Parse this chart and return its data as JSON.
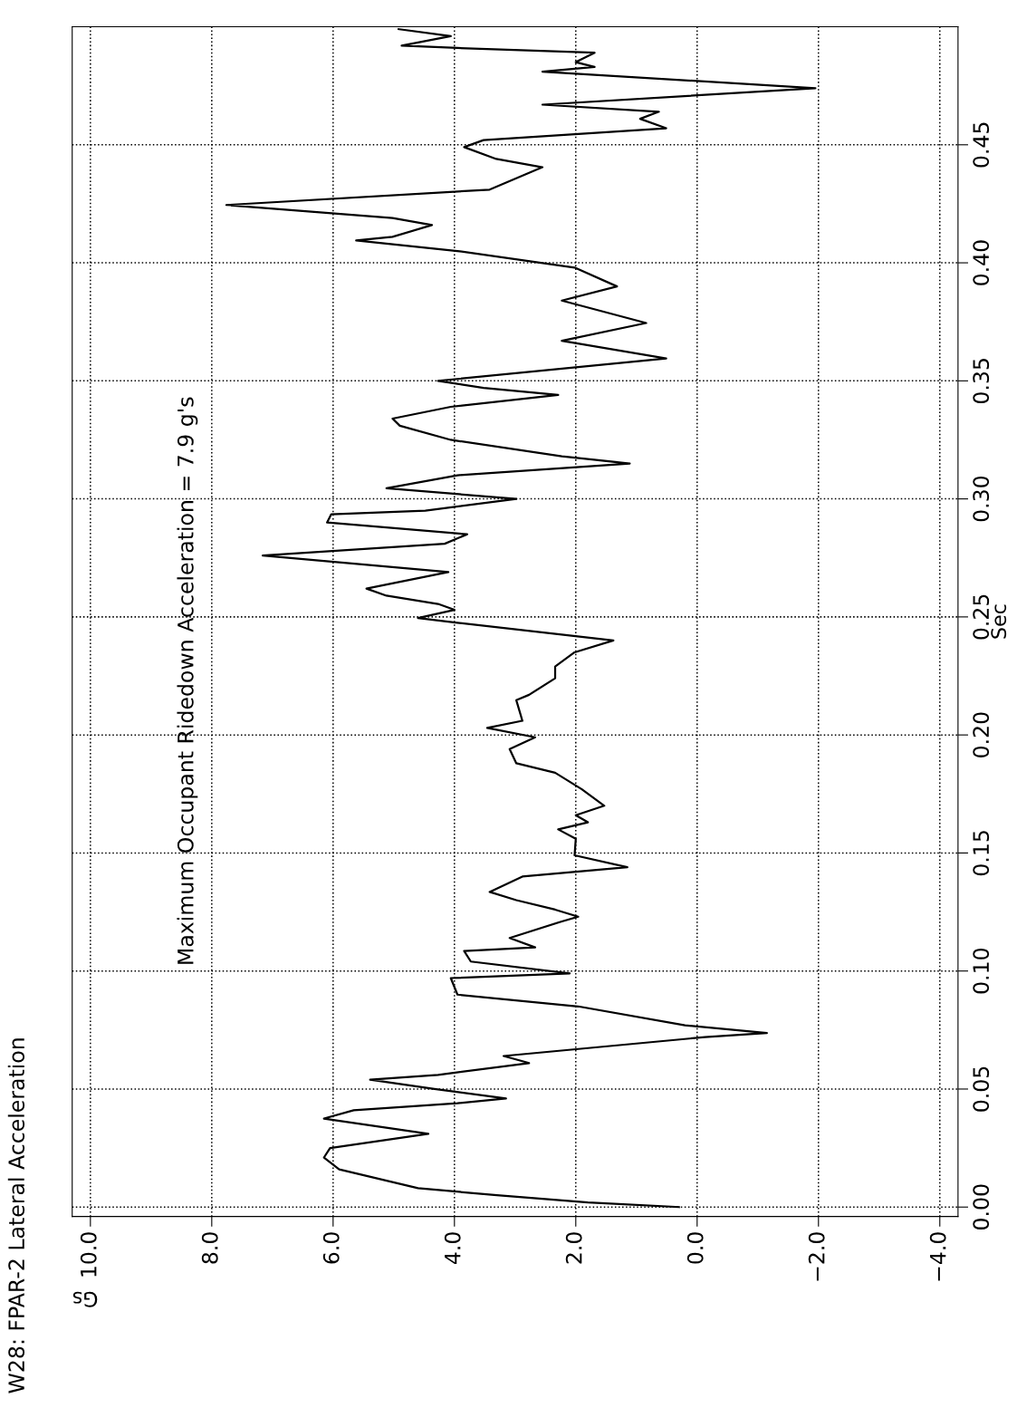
{
  "chart_data": {
    "type": "line",
    "title": "W28: FPAR-2 Lateral Acceleration",
    "xlabel": "Gs",
    "ylabel": "Sec",
    "annotations": [
      "Maximum Occupant Ridedown Acceleration = 7.9 g's"
    ],
    "xlim": [
      10.3,
      -4.3
    ],
    "ylim": [
      -0.004,
      0.5
    ],
    "xticks": [
      {
        "value": 10,
        "label": "10.0"
      },
      {
        "value": 8,
        "label": "8.0"
      },
      {
        "value": 6,
        "label": "6.0"
      },
      {
        "value": 4,
        "label": "4.0"
      },
      {
        "value": 2,
        "label": "2.0"
      },
      {
        "value": 0,
        "label": "0.0"
      },
      {
        "value": -2,
        "label": "−2.0"
      },
      {
        "value": -4,
        "label": "−4.0"
      }
    ],
    "yticks": [
      {
        "value": 0,
        "label": "0.00"
      },
      {
        "value": 0.05,
        "label": "0.05"
      },
      {
        "value": 0.1,
        "label": "0.10"
      },
      {
        "value": 0.15,
        "label": "0.15"
      },
      {
        "value": 0.2,
        "label": "0.20"
      },
      {
        "value": 0.25,
        "label": "0.25"
      },
      {
        "value": 0.3,
        "label": "0.30"
      },
      {
        "value": 0.35,
        "label": "0.35"
      },
      {
        "value": 0.4,
        "label": "0.40"
      },
      {
        "value": 0.45,
        "label": "0.45"
      }
    ],
    "grid": true,
    "line_style": "solid",
    "marker": "none",
    "series": [
      {
        "color": "#000000",
        "x": [
          0.3,
          1.8,
          3.3,
          4.6,
          5.9,
          6.15,
          6.05,
          4.43,
          6.15,
          5.66,
          3.95,
          3.15,
          4.33,
          5.39,
          4.27,
          2.77,
          3.19,
          -0.13,
          -1.15,
          0.2,
          1.96,
          3.95,
          4.06,
          2.1,
          3.73,
          3.84,
          2.67,
          3.09,
          2.23,
          1.96,
          2.34,
          2.98,
          3.42,
          2.88,
          1.15,
          2.02,
          2.0,
          2.29,
          1.8,
          2.0,
          1.53,
          1.9,
          2.34,
          2.98,
          3.09,
          2.67,
          3.46,
          2.88,
          2.98,
          2.77,
          2.34,
          2.34,
          2.02,
          1.38,
          3.95,
          4.6,
          4.0,
          4.27,
          5.12,
          5.45,
          4.1,
          7.16,
          4.16,
          3.79,
          6.1,
          6.03,
          4.48,
          2.98,
          5.12,
          3.95,
          1.11,
          2.23,
          4.06,
          4.9,
          5.02,
          4.06,
          2.29,
          3.52,
          4.27,
          0.51,
          2.23,
          0.84,
          2.23,
          1.32,
          2.02,
          3.95,
          5.62,
          5.02,
          4.37,
          5.02,
          7.76,
          3.42,
          2.55,
          3.31,
          3.84,
          3.52,
          0.51,
          0.94,
          0.63,
          2.55,
          -1.95,
          2.55,
          1.69,
          2.0,
          1.69,
          3.95,
          4.87,
          4.06,
          4.92
        ],
        "values": [
          0.0,
          0.002,
          0.005,
          0.008,
          0.016,
          0.021,
          0.025,
          0.031,
          0.0375,
          0.041,
          0.044,
          0.046,
          0.05,
          0.054,
          0.056,
          0.061,
          0.064,
          0.072,
          0.0737,
          0.077,
          0.085,
          0.09,
          0.097,
          0.099,
          0.104,
          0.1085,
          0.11,
          0.114,
          0.121,
          0.123,
          0.126,
          0.13,
          0.1335,
          0.14,
          0.144,
          0.149,
          0.156,
          0.16,
          0.163,
          0.166,
          0.17,
          0.177,
          0.184,
          0.188,
          0.194,
          0.199,
          0.203,
          0.206,
          0.2147,
          0.217,
          0.224,
          0.229,
          0.235,
          0.24,
          0.2475,
          0.2495,
          0.253,
          0.2555,
          0.259,
          0.262,
          0.269,
          0.276,
          0.281,
          0.285,
          0.29,
          0.2935,
          0.295,
          0.3,
          0.3045,
          0.31,
          0.315,
          0.318,
          0.325,
          0.331,
          0.334,
          0.339,
          0.344,
          0.347,
          0.35,
          0.3595,
          0.367,
          0.3745,
          0.384,
          0.39,
          0.398,
          0.405,
          0.4095,
          0.411,
          0.416,
          0.419,
          0.4245,
          0.431,
          0.4405,
          0.444,
          0.449,
          0.452,
          0.457,
          0.461,
          0.464,
          0.467,
          0.474,
          0.481,
          0.483,
          0.485,
          0.489,
          0.491,
          0.492,
          0.496,
          0.499
        ]
      }
    ]
  }
}
